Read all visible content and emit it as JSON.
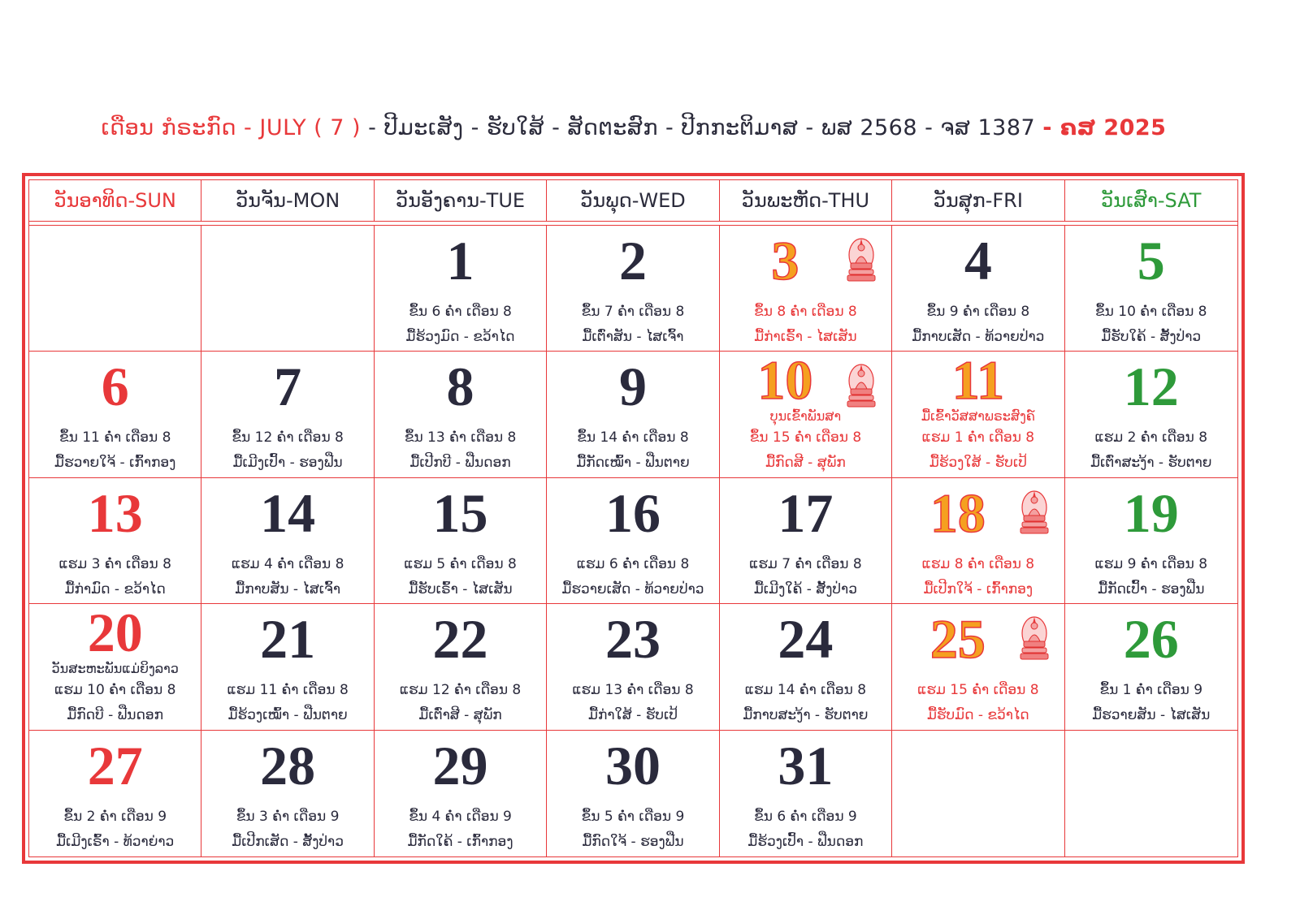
{
  "header": {
    "title_segments": [
      {
        "text": "ເດືອນ ກໍຣະກົດ - JULY ( 7 )",
        "color": "#e8383a"
      },
      {
        "text": " - ປີມະເສັງ - ຮັບໃສ້ - ສັດຕະສົກ - ປີກກະຕິມາສ - ພສ 2568 - ຈສ 1387 ",
        "color": "#2b2b3b"
      },
      {
        "text": "- ຄສ 2025",
        "color": "#e8383a"
      }
    ]
  },
  "weekdays": [
    {
      "label": "ວັນອາທິດ-SUN",
      "color": "#e8383a"
    },
    {
      "label": "ວັນຈັນ-MON",
      "color": "#2b2b3b"
    },
    {
      "label": "ວັນອັງຄານ-TUE",
      "color": "#2b2b3b"
    },
    {
      "label": "ວັນພຸດ-WED",
      "color": "#2b2b3b"
    },
    {
      "label": "ວັນພະຫັດ-THU",
      "color": "#2b2b3b"
    },
    {
      "label": "ວັນສຸກ-FRI",
      "color": "#2b2b3b"
    },
    {
      "label": "ວັນເສົາ-SAT",
      "color": "#2e9a3a"
    }
  ],
  "weeks": [
    [
      null,
      null,
      {
        "day": 1,
        "day_color": "#2a2a3c",
        "lines": [
          "ຂຶ້ນ 6 ຄ່ຳ ເດືອນ 8",
          "ມື້ຮ້ວງມົດ - ຂວ້າໄດ"
        ],
        "line_color": "#2a2a3c"
      },
      {
        "day": 2,
        "day_color": "#2a2a3c",
        "lines": [
          "ຂຶ້ນ 7 ຄ່ຳ ເດືອນ 8",
          "ມື້ເຕົ່າສັນ - ໄສເຈົ້າ"
        ],
        "line_color": "#2a2a3c"
      },
      {
        "day": 3,
        "day_color": "#f5a020",
        "buddha": true,
        "lines": [
          "ຂຶ້ນ 8 ຄ່ຳ ເດືອນ 8",
          "ມື້ກ່າເຣົ້າ - ໄສເສັນ"
        ],
        "line_color": "#e8383a"
      },
      {
        "day": 4,
        "day_color": "#2a2a3c",
        "lines": [
          "ຂຶ້ນ 9 ຄ່ຳ ເດືອນ 8",
          "ມື້ກາບເສັດ - ທ້ວາຍປ່າວ"
        ],
        "line_color": "#2a2a3c"
      },
      {
        "day": 5,
        "day_color": "#2e9a3a",
        "lines": [
          "ຂຶ້ນ 10 ຄ່ຳ ເດືອນ 8",
          "ມື້ຮັບໃຄ້ - ສັ້ງປ່າວ"
        ],
        "line_color": "#2a2a3c"
      }
    ],
    [
      {
        "day": 6,
        "day_color": "#e8383a",
        "lines": [
          "ຂຶ້ນ 11 ຄ່ຳ ເດືອນ 8",
          "ມື້ຮວາຍໃຈ້ - ເກົ້າກອງ"
        ],
        "line_color": "#2a2a3c"
      },
      {
        "day": 7,
        "day_color": "#2a2a3c",
        "lines": [
          "ຂຶ້ນ 12 ຄ່ຳ ເດືອນ 8",
          "ມື້ເມີງເປົ້າ - ຮອງຟືນ"
        ],
        "line_color": "#2a2a3c"
      },
      {
        "day": 8,
        "day_color": "#2a2a3c",
        "lines": [
          "ຂຶ້ນ 13 ຄ່ຳ ເດືອນ 8",
          "ມື້ເປີກບີ - ຟືນດອກ"
        ],
        "line_color": "#2a2a3c"
      },
      {
        "day": 9,
        "day_color": "#2a2a3c",
        "lines": [
          "ຂຶ້ນ 14 ຄ່ຳ ເດືອນ 8",
          "ມື້ກັດເໝົ້າ - ຟືນຕາຍ"
        ],
        "line_color": "#2a2a3c"
      },
      {
        "day": 10,
        "day_color": "#f5a020",
        "buddha": true,
        "holiday": "ບຸນເຂົ້າພັນສາ",
        "holiday_color": "#e8383a",
        "lines": [
          "ຂຶ້ນ 15 ຄ່ຳ ເດືອນ 8",
          "ມື້ກົດສີ - ສຸພັກ"
        ],
        "line_color": "#e8383a"
      },
      {
        "day": 11,
        "day_color": "#f5a020",
        "holiday": "ມື້ເຂົ້າວັສສາພຣະສົງຄ໌",
        "holiday_color": "#e8383a",
        "lines": [
          "ແຮມ 1 ຄ່ຳ ເດືອນ 8",
          "ມື້ຮ້ວງໃສ້ - ຮັບເປ້"
        ],
        "line_color": "#e8383a"
      },
      {
        "day": 12,
        "day_color": "#2e9a3a",
        "lines": [
          "ແຮມ 2 ຄ່ຳ ເດືອນ 8",
          "ມື້ເຕົ່າສະງ້າ - ຮັບຕາຍ"
        ],
        "line_color": "#2a2a3c"
      }
    ],
    [
      {
        "day": 13,
        "day_color": "#e8383a",
        "lines": [
          "ແຮມ 3 ຄ່ຳ ເດືອນ 8",
          "ມື້ກ່າມົດ - ຂວ້າໄດ"
        ],
        "line_color": "#2a2a3c"
      },
      {
        "day": 14,
        "day_color": "#2a2a3c",
        "lines": [
          "ແຮມ 4 ຄ່ຳ ເດືອນ 8",
          "ມື້ກາບສັນ - ໄສເຈົ້າ"
        ],
        "line_color": "#2a2a3c"
      },
      {
        "day": 15,
        "day_color": "#2a2a3c",
        "lines": [
          "ແຮມ 5 ຄ່ຳ ເດືອນ 8",
          "ມື້ຮັບເຣົ້າ - ໄສເສັນ"
        ],
        "line_color": "#2a2a3c"
      },
      {
        "day": 16,
        "day_color": "#2a2a3c",
        "lines": [
          "ແຮມ 6 ຄ່ຳ ເດືອນ 8",
          "ມື້ຮວາຍເສັດ - ທ້ວາຍປ່າວ"
        ],
        "line_color": "#2a2a3c"
      },
      {
        "day": 17,
        "day_color": "#2a2a3c",
        "lines": [
          "ແຮມ 7 ຄ່ຳ ເດືອນ 8",
          "ມື້ເມີງໃຄ້ - ສັ້ງປ່າວ"
        ],
        "line_color": "#2a2a3c"
      },
      {
        "day": 18,
        "day_color": "#f5a020",
        "buddha": true,
        "lines": [
          "ແຮມ 8 ຄ່ຳ ເດືອນ 8",
          "ມື້ເປີກໃຈ້ - ເກົ້າກອງ"
        ],
        "line_color": "#e8383a"
      },
      {
        "day": 19,
        "day_color": "#2e9a3a",
        "lines": [
          "ແຮມ 9 ຄ່ຳ ເດືອນ 8",
          "ມື້ກັດເປົ້າ - ຮອງຟືນ"
        ],
        "line_color": "#2a2a3c"
      }
    ],
    [
      {
        "day": 20,
        "day_color": "#e8383a",
        "holiday": "ວັນສະຫະພັນແມ່ຍິງລາວ",
        "holiday_color": "#2a2a3c",
        "lines": [
          "ແຮມ 10 ຄ່ຳ ເດືອນ 8",
          "ມື້ກົດບີ - ຟືນດອກ"
        ],
        "line_color": "#2a2a3c"
      },
      {
        "day": 21,
        "day_color": "#2a2a3c",
        "lines": [
          "ແຮມ 11 ຄ່ຳ ເດືອນ 8",
          "ມື້ຮ້ວງເໝົ້າ - ຟືນຕາຍ"
        ],
        "line_color": "#2a2a3c"
      },
      {
        "day": 22,
        "day_color": "#2a2a3c",
        "lines": [
          "ແຮມ 12 ຄ່ຳ ເດືອນ 8",
          "ມື້ເຕົ່າສີ - ສຸພັກ"
        ],
        "line_color": "#2a2a3c"
      },
      {
        "day": 23,
        "day_color": "#2a2a3c",
        "lines": [
          "ແຮມ 13 ຄ່ຳ ເດືອນ 8",
          "ມື້ກ່າໃສ້ - ຮັບເປ້"
        ],
        "line_color": "#2a2a3c"
      },
      {
        "day": 24,
        "day_color": "#2a2a3c",
        "lines": [
          "ແຮມ 14 ຄ່ຳ ເດືອນ 8",
          "ມື້ກາບສະງ້າ - ຮັບຕາຍ"
        ],
        "line_color": "#2a2a3c"
      },
      {
        "day": 25,
        "day_color": "#f5a020",
        "buddha": true,
        "lines": [
          "ແຮມ 15 ຄ່ຳ ເດືອນ 8",
          "ມື້ຮັບມົດ - ຂວ້າໄດ"
        ],
        "line_color": "#e8383a"
      },
      {
        "day": 26,
        "day_color": "#2e9a3a",
        "lines": [
          "ຂຶ້ນ 1 ຄ່ຳ ເດືອນ 9",
          "ມື້ຮວາຍສັນ - ໄສເສັນ"
        ],
        "line_color": "#2a2a3c"
      }
    ],
    [
      {
        "day": 27,
        "day_color": "#e8383a",
        "lines": [
          "ຂຶ້ນ 2 ຄ່ຳ ເດືອນ 9",
          "ມື້ເມີງເຣົ້າ - ທ້ວາຍ່າວ"
        ],
        "line_color": "#2a2a3c"
      },
      {
        "day": 28,
        "day_color": "#2a2a3c",
        "lines": [
          "ຂຶ້ນ 3 ຄ່ຳ ເດືອນ 9",
          "ມື້ເປີກເສັດ - ສັ້ງປ່າວ"
        ],
        "line_color": "#2a2a3c"
      },
      {
        "day": 29,
        "day_color": "#2a2a3c",
        "lines": [
          "ຂຶ້ນ 4 ຄ່ຳ ເດືອນ 9",
          "ມື້ກັດໃຄ້ - ເກົ້າກອງ"
        ],
        "line_color": "#2a2a3c"
      },
      {
        "day": 30,
        "day_color": "#2a2a3c",
        "lines": [
          "ຂຶ້ນ 5 ຄ່ຳ ເດືອນ 9",
          "ມື້ກົດໃຈ້ - ຮອງຟືນ"
        ],
        "line_color": "#2a2a3c"
      },
      {
        "day": 31,
        "day_color": "#2a2a3c",
        "lines": [
          "ຂຶ້ນ 6 ຄ່ຳ ເດືອນ 9",
          "ມື້ຮ້ວງເປົ້າ - ຟືນດອກ"
        ],
        "line_color": "#2a2a3c"
      },
      null,
      null
    ]
  ]
}
